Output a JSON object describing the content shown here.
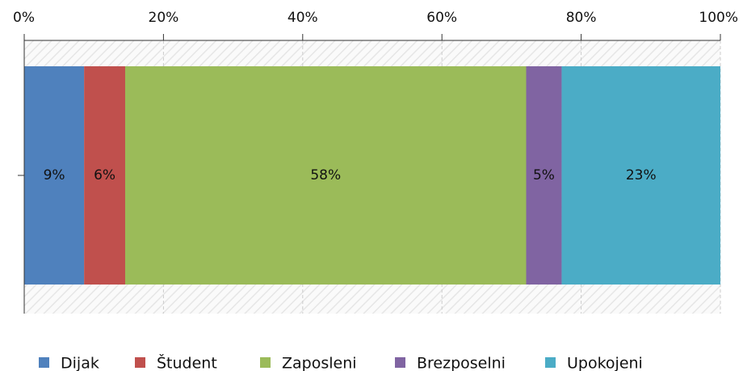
{
  "chart_data": {
    "type": "stacked_bar_horizontal",
    "xlim": [
      0,
      100
    ],
    "xticks": [
      {
        "value": 0,
        "label": "0%"
      },
      {
        "value": 20,
        "label": "20%"
      },
      {
        "value": 40,
        "label": "40%"
      },
      {
        "value": 60,
        "label": "60%"
      },
      {
        "value": 80,
        "label": "80%"
      },
      {
        "value": 100,
        "label": "100%"
      }
    ],
    "grid": true,
    "legend": "bottom",
    "series": [
      {
        "name": "Dijak",
        "color": "#4f81bd",
        "values": [
          8.6
        ],
        "value_labels": [
          "9%"
        ]
      },
      {
        "name": "Študent",
        "color": "#c0504d",
        "values": [
          5.9
        ],
        "value_labels": [
          "6%"
        ]
      },
      {
        "name": "Zaposleni",
        "color": "#9bbb59",
        "values": [
          57.6
        ],
        "value_labels": [
          "58%"
        ]
      },
      {
        "name": "Brezposelni",
        "color": "#8064a2",
        "values": [
          5.1
        ],
        "value_labels": [
          "5%"
        ]
      },
      {
        "name": "Upokojeni",
        "color": "#4bacc6",
        "values": [
          22.8
        ],
        "value_labels": [
          "23%"
        ]
      }
    ]
  }
}
